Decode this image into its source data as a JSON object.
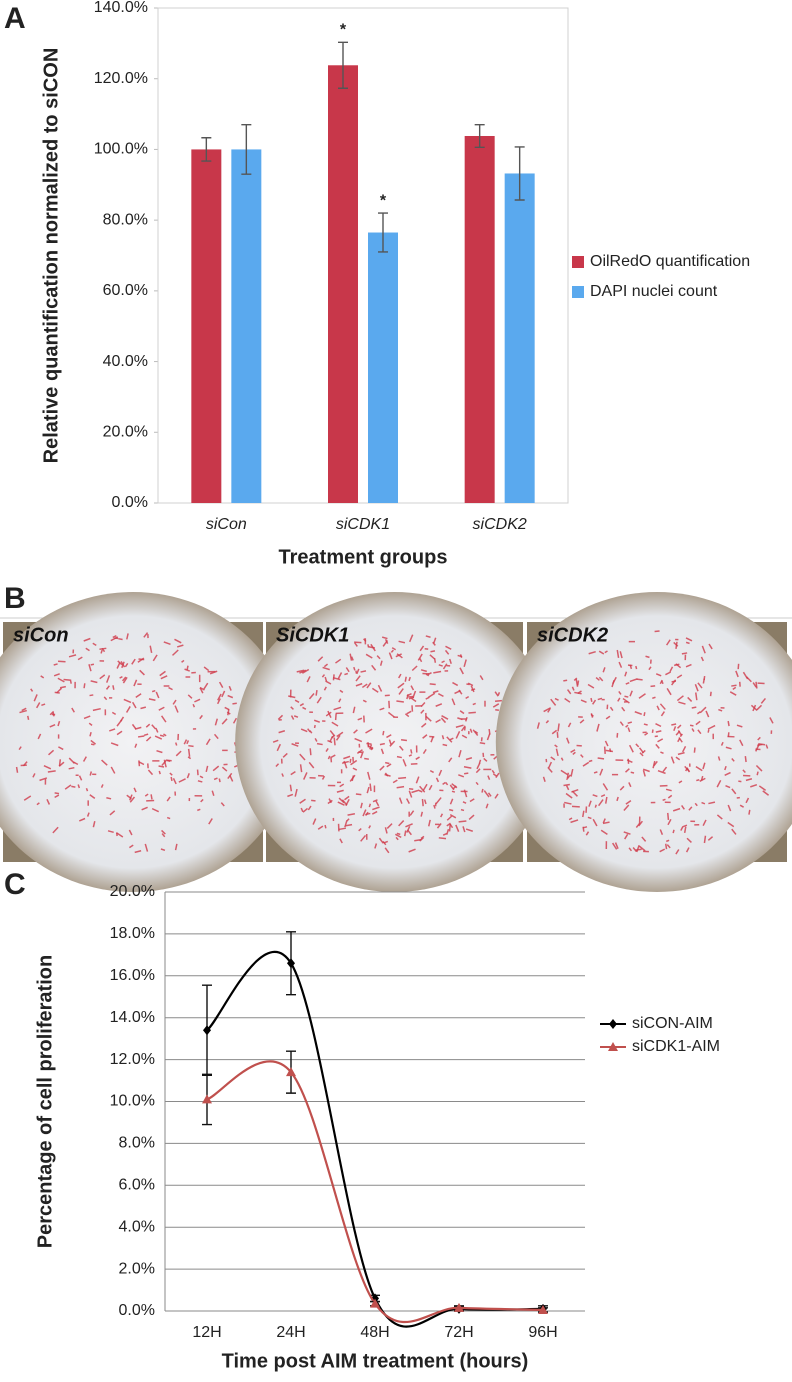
{
  "panel_labels": [
    "A",
    "B",
    "C"
  ],
  "images": [
    "siCon",
    "SiCDK1",
    "siCDK2"
  ],
  "chart_data": [
    {
      "type": "bar",
      "y_label": "Relative quantification normalized to siCON",
      "x_label": "Treatment groups",
      "categories": [
        "siCon",
        "siCDK1",
        "siCDK2"
      ],
      "series": [
        {
          "name": "OilRedO quantification",
          "color": "#c8374a",
          "values": [
            100,
            123.8,
            103.8
          ],
          "errors": [
            3.3,
            6.5,
            3.2
          ]
        },
        {
          "name": "DAPI nuclei count",
          "color": "#5aa9ee",
          "values": [
            100,
            76.5,
            93.2
          ],
          "errors": [
            7,
            5.5,
            7.5
          ]
        }
      ],
      "annotations": [
        {
          "text": "*",
          "series": 0,
          "category": 1
        },
        {
          "text": "*",
          "series": 1,
          "category": 1
        }
      ],
      "ylim": [
        0,
        140
      ],
      "yticks": [
        {
          "value": 0,
          "label": "0.0%"
        },
        {
          "value": 20,
          "label": "20.0%"
        },
        {
          "value": 40,
          "label": "40.0%"
        },
        {
          "value": 60,
          "label": "60.0%"
        },
        {
          "value": 80,
          "label": "80.0%"
        },
        {
          "value": 100,
          "label": "100.0%"
        },
        {
          "value": 120,
          "label": "120.0%"
        },
        {
          "value": 140,
          "label": "140.0%"
        }
      ],
      "grid": false,
      "legend": "right"
    },
    {
      "type": "line",
      "y_label": "Percentage of cell proliferation",
      "x_label": "Time post AIM treatment (hours)",
      "categories": [
        "12H",
        "24H",
        "48H",
        "72H",
        "96H"
      ],
      "series": [
        {
          "name": "siCON-AIM",
          "color": "#000000",
          "marker": "diamond",
          "values": [
            13.4,
            16.6,
            0.6,
            0.1,
            0.1
          ],
          "errors": [
            2.15,
            1.5,
            0.15,
            0.1,
            0.15
          ]
        },
        {
          "name": "siCDK1-AIM",
          "color": "#c0504d",
          "marker": "triangle",
          "values": [
            10.1,
            11.4,
            0.35,
            0.15,
            0.05
          ],
          "errors": [
            1.2,
            1.0,
            0.1,
            0.1,
            0.1
          ]
        }
      ],
      "ylim": [
        0,
        20
      ],
      "yticks": [
        {
          "value": 0,
          "label": "0.0%"
        },
        {
          "value": 2,
          "label": "2.0%"
        },
        {
          "value": 4,
          "label": "4.0%"
        },
        {
          "value": 6,
          "label": "6.0%"
        },
        {
          "value": 8,
          "label": "8.0%"
        },
        {
          "value": 10,
          "label": "10.0%"
        },
        {
          "value": 12,
          "label": "12.0%"
        },
        {
          "value": 14,
          "label": "14.0%"
        },
        {
          "value": 16,
          "label": "16.0%"
        },
        {
          "value": 18,
          "label": "18.0%"
        },
        {
          "value": 20,
          "label": "20.0%"
        }
      ],
      "grid": true,
      "legend": "right"
    }
  ]
}
